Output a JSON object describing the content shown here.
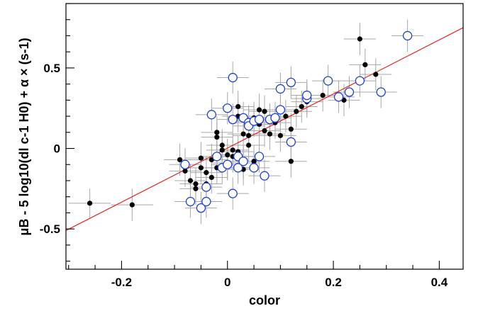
{
  "chart_data": {
    "type": "scatter",
    "title": "",
    "xlabel": "color",
    "ylabel": "μB - 5 log10(dl c-1 H0) + α × (s-1)",
    "xlim": [
      -0.305,
      0.445
    ],
    "ylim": [
      -0.75,
      0.9
    ],
    "xticks": [
      -0.2,
      0,
      0.2,
      0.4
    ],
    "xtick_labels": [
      "-0.2",
      "0",
      "0.2",
      "0.4"
    ],
    "yticks": [
      -0.5,
      0,
      0.5
    ],
    "ytick_labels": [
      "-0.5",
      "0",
      "0.5"
    ],
    "grid": false,
    "fit_line": {
      "x": [
        -0.305,
        0.445
      ],
      "y": [
        -0.51,
        0.75
      ],
      "color": "#e8241f"
    },
    "series": [
      {
        "marker": "filled-circle",
        "color": "#000000",
        "points": [
          [
            -0.26,
            -0.34,
            0.04,
            0.09
          ],
          [
            -0.18,
            -0.35,
            0.04,
            0.1
          ],
          [
            -0.09,
            -0.07,
            0.03,
            0.1
          ],
          [
            -0.08,
            -0.14,
            0.03,
            0.1
          ],
          [
            -0.07,
            -0.2,
            0.03,
            0.1
          ],
          [
            -0.06,
            -0.25,
            0.03,
            0.1
          ],
          [
            -0.06,
            -0.22,
            0.03,
            0.1
          ],
          [
            -0.05,
            -0.06,
            0.03,
            0.1
          ],
          [
            -0.05,
            -0.12,
            0.03,
            0.1
          ],
          [
            -0.04,
            -0.22,
            0.03,
            0.1
          ],
          [
            -0.04,
            -0.15,
            0.03,
            0.1
          ],
          [
            -0.03,
            -0.18,
            0.03,
            0.1
          ],
          [
            -0.03,
            -0.07,
            0.03,
            0.1
          ],
          [
            -0.02,
            -0.12,
            0.03,
            0.1
          ],
          [
            -0.02,
            0.07,
            0.03,
            0.1
          ],
          [
            -0.02,
            0.1,
            0.03,
            0.1
          ],
          [
            -0.01,
            -0.01,
            0.03,
            0.1
          ],
          [
            -0.01,
            0.02,
            0.03,
            0.1
          ],
          [
            0.0,
            -0.04,
            0.03,
            0.1
          ],
          [
            0.0,
            -0.09,
            0.03,
            0.1
          ],
          [
            0.01,
            -0.01,
            0.03,
            0.1
          ],
          [
            0.01,
            -0.05,
            0.03,
            0.1
          ],
          [
            0.02,
            0.26,
            0.03,
            0.1
          ],
          [
            0.02,
            0.2,
            0.03,
            0.1
          ],
          [
            0.02,
            -0.02,
            0.03,
            0.1
          ],
          [
            0.03,
            0.09,
            0.03,
            0.1
          ],
          [
            0.03,
            -0.09,
            0.03,
            0.1
          ],
          [
            0.03,
            -0.13,
            0.03,
            0.1
          ],
          [
            0.04,
            0.17,
            0.03,
            0.1
          ],
          [
            0.04,
            0.08,
            0.03,
            0.1
          ],
          [
            0.04,
            0.02,
            0.03,
            0.1
          ],
          [
            0.05,
            -0.08,
            0.03,
            0.1
          ],
          [
            0.05,
            0.19,
            0.03,
            0.1
          ],
          [
            0.06,
            0.24,
            0.03,
            0.1
          ],
          [
            0.06,
            0.15,
            0.03,
            0.1
          ],
          [
            0.07,
            0.23,
            0.03,
            0.1
          ],
          [
            0.07,
            0.11,
            0.03,
            0.1
          ],
          [
            0.08,
            0.09,
            0.03,
            0.1
          ],
          [
            0.09,
            0.16,
            0.03,
            0.1
          ],
          [
            0.1,
            0.08,
            0.03,
            0.1
          ],
          [
            0.11,
            0.2,
            0.03,
            0.1
          ],
          [
            0.12,
            0.12,
            0.03,
            0.1
          ],
          [
            0.13,
            0.23,
            0.03,
            0.1
          ],
          [
            0.14,
            0.26,
            0.03,
            0.1
          ],
          [
            0.15,
            0.29,
            0.03,
            0.1
          ],
          [
            0.18,
            0.33,
            0.03,
            0.1
          ],
          [
            0.22,
            0.3,
            0.03,
            0.1
          ],
          [
            0.25,
            0.68,
            0.03,
            0.1
          ],
          [
            0.26,
            0.52,
            0.03,
            0.1
          ],
          [
            0.28,
            0.46,
            0.03,
            0.1
          ],
          [
            0.12,
            -0.08,
            0.03,
            0.1
          ]
        ]
      },
      {
        "marker": "open-circle",
        "color": "#1f3fd9",
        "points": [
          [
            -0.08,
            -0.1,
            0.03,
            0.1
          ],
          [
            -0.07,
            -0.33,
            0.03,
            0.1
          ],
          [
            -0.05,
            -0.37,
            0.03,
            0.1
          ],
          [
            -0.04,
            -0.24,
            0.03,
            0.1
          ],
          [
            -0.04,
            -0.33,
            0.03,
            0.1
          ],
          [
            -0.03,
            0.21,
            0.03,
            0.1
          ],
          [
            -0.02,
            -0.05,
            0.03,
            0.1
          ],
          [
            -0.01,
            -0.12,
            0.03,
            0.1
          ],
          [
            0.0,
            0.25,
            0.03,
            0.1
          ],
          [
            0.0,
            -0.1,
            0.03,
            0.1
          ],
          [
            0.01,
            0.44,
            0.03,
            0.1
          ],
          [
            0.01,
            0.18,
            0.03,
            0.1
          ],
          [
            0.01,
            -0.28,
            0.03,
            0.1
          ],
          [
            0.02,
            -0.05,
            0.03,
            0.1
          ],
          [
            0.02,
            -0.12,
            0.03,
            0.1
          ],
          [
            0.03,
            0.19,
            0.03,
            0.1
          ],
          [
            0.03,
            -0.08,
            0.03,
            0.1
          ],
          [
            0.04,
            0.16,
            0.03,
            0.1
          ],
          [
            0.04,
            0.14,
            0.03,
            0.1
          ],
          [
            0.05,
            0.17,
            0.03,
            0.1
          ],
          [
            0.05,
            -0.12,
            0.03,
            0.1
          ],
          [
            0.06,
            0.18,
            0.03,
            0.1
          ],
          [
            0.06,
            -0.05,
            0.03,
            0.1
          ],
          [
            0.07,
            -0.17,
            0.03,
            0.1
          ],
          [
            0.08,
            0.18,
            0.03,
            0.1
          ],
          [
            0.09,
            0.19,
            0.03,
            0.1
          ],
          [
            0.1,
            0.24,
            0.03,
            0.1
          ],
          [
            0.1,
            0.37,
            0.03,
            0.1
          ],
          [
            0.12,
            0.04,
            0.03,
            0.1
          ],
          [
            0.12,
            0.41,
            0.03,
            0.1
          ],
          [
            0.15,
            0.31,
            0.03,
            0.1
          ],
          [
            0.15,
            0.33,
            0.03,
            0.1
          ],
          [
            0.19,
            0.42,
            0.03,
            0.1
          ],
          [
            0.21,
            0.32,
            0.03,
            0.1
          ],
          [
            0.23,
            0.35,
            0.03,
            0.1
          ],
          [
            0.25,
            0.42,
            0.03,
            0.1
          ],
          [
            0.29,
            0.35,
            0.03,
            0.1
          ],
          [
            0.34,
            0.7,
            0.03,
            0.1
          ]
        ]
      }
    ]
  }
}
